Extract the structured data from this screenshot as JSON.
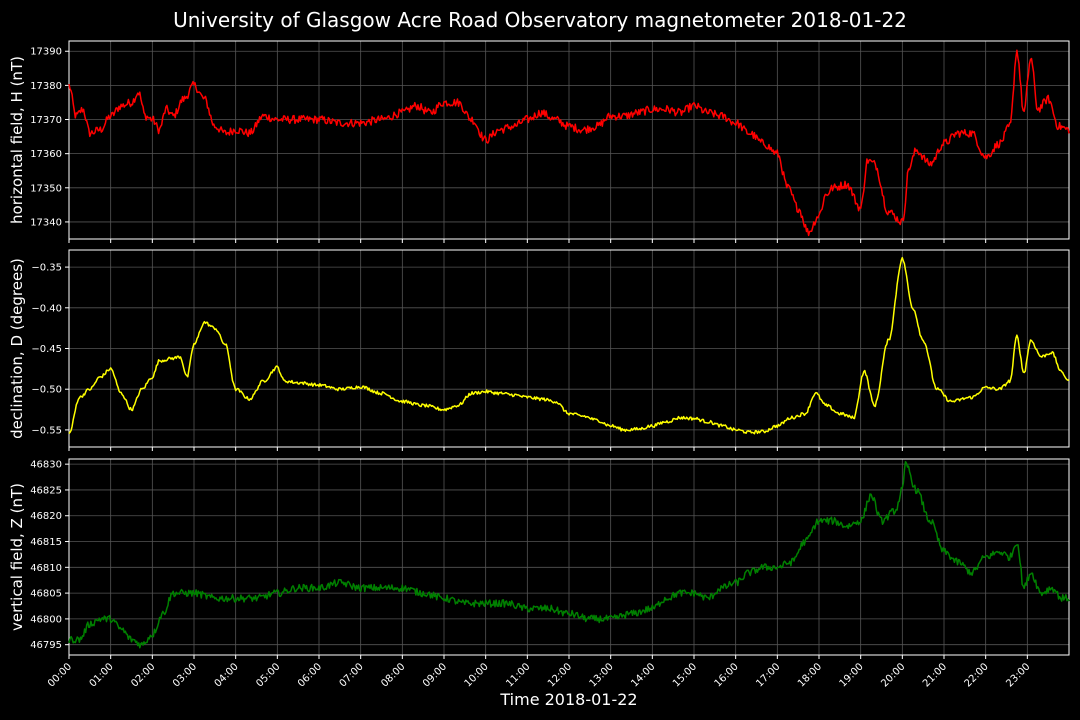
{
  "chart_data": {
    "type": "line",
    "title": "University of Glasgow Acre Road Observatory magnetometer 2018-01-22",
    "xlabel": "Time 2018-01-22",
    "x_ticks": [
      "00:00",
      "01:00",
      "02:00",
      "03:00",
      "04:00",
      "05:00",
      "06:00",
      "07:00",
      "08:00",
      "09:00",
      "10:00",
      "11:00",
      "12:00",
      "13:00",
      "14:00",
      "15:00",
      "16:00",
      "17:00",
      "18:00",
      "19:00",
      "20:00",
      "21:00",
      "22:00",
      "23:00"
    ],
    "xlim": [
      "00:00",
      "24:00"
    ],
    "grid": true,
    "panels": [
      {
        "ylabel": "horizontal field, H (nT)",
        "color": "#ff0000",
        "ylim": [
          17335,
          17393
        ],
        "y_ticks": [
          17340,
          17350,
          17360,
          17370,
          17380,
          17390
        ],
        "noise": 1.2,
        "points": [
          [
            "00:00",
            17380
          ],
          [
            "00:10",
            17371
          ],
          [
            "00:20",
            17373
          ],
          [
            "00:30",
            17366
          ],
          [
            "00:45",
            17367
          ],
          [
            "01:00",
            17371
          ],
          [
            "01:15",
            17374
          ],
          [
            "01:30",
            17375
          ],
          [
            "01:40",
            17378
          ],
          [
            "01:50",
            17371
          ],
          [
            "02:00",
            17370
          ],
          [
            "02:10",
            17367
          ],
          [
            "02:20",
            17373
          ],
          [
            "02:30",
            17371
          ],
          [
            "02:45",
            17376
          ],
          [
            "03:00",
            17380
          ],
          [
            "03:15",
            17376
          ],
          [
            "03:30",
            17368
          ],
          [
            "03:45",
            17366
          ],
          [
            "04:00",
            17367
          ],
          [
            "04:20",
            17366
          ],
          [
            "04:40",
            17371
          ],
          [
            "05:00",
            17370
          ],
          [
            "05:30",
            17370
          ],
          [
            "06:00",
            17370
          ],
          [
            "06:30",
            17369
          ],
          [
            "07:00",
            17369
          ],
          [
            "07:30",
            17370
          ],
          [
            "08:00",
            17372
          ],
          [
            "08:20",
            17374
          ],
          [
            "08:40",
            17372
          ],
          [
            "09:00",
            17375
          ],
          [
            "09:20",
            17375
          ],
          [
            "09:40",
            17370
          ],
          [
            "10:00",
            17364
          ],
          [
            "10:20",
            17367
          ],
          [
            "10:40",
            17368
          ],
          [
            "11:00",
            17370
          ],
          [
            "11:20",
            17372
          ],
          [
            "11:40",
            17370
          ],
          [
            "12:00",
            17368
          ],
          [
            "12:20",
            17367
          ],
          [
            "12:40",
            17368
          ],
          [
            "13:00",
            17371
          ],
          [
            "13:20",
            17371
          ],
          [
            "13:40",
            17372
          ],
          [
            "14:00",
            17373
          ],
          [
            "14:20",
            17373
          ],
          [
            "14:40",
            17372
          ],
          [
            "15:00",
            17374
          ],
          [
            "15:20",
            17372
          ],
          [
            "15:40",
            17371
          ],
          [
            "16:00",
            17369
          ],
          [
            "16:20",
            17366
          ],
          [
            "16:40",
            17363
          ],
          [
            "17:00",
            17360
          ],
          [
            "17:15",
            17350
          ],
          [
            "17:30",
            17344
          ],
          [
            "17:45",
            17337
          ],
          [
            "18:00",
            17342
          ],
          [
            "18:10",
            17348
          ],
          [
            "18:20",
            17350
          ],
          [
            "18:40",
            17351
          ],
          [
            "19:00",
            17344
          ],
          [
            "19:10",
            17358
          ],
          [
            "19:20",
            17357
          ],
          [
            "19:40",
            17343
          ],
          [
            "20:00",
            17340
          ],
          [
            "20:10",
            17356
          ],
          [
            "20:20",
            17361
          ],
          [
            "20:40",
            17357
          ],
          [
            "21:00",
            17363
          ],
          [
            "21:20",
            17366
          ],
          [
            "21:40",
            17366
          ],
          [
            "22:00",
            17359
          ],
          [
            "22:20",
            17363
          ],
          [
            "22:35",
            17368
          ],
          [
            "22:45",
            17390
          ],
          [
            "22:55",
            17372
          ],
          [
            "23:05",
            17388
          ],
          [
            "23:15",
            17373
          ],
          [
            "23:30",
            17376
          ],
          [
            "23:45",
            17368
          ],
          [
            "24:00",
            17367
          ]
        ]
      },
      {
        "ylabel": "declination, D (degrees)",
        "color": "#ffff00",
        "ylim": [
          -0.571,
          -0.329
        ],
        "y_ticks": [
          -0.55,
          -0.5,
          -0.45,
          -0.4,
          -0.35
        ],
        "y_tick_labels": [
          "−0.55",
          "−0.50",
          "−0.45",
          "−0.40",
          "−0.35"
        ],
        "noise": 0.002,
        "points": [
          [
            "00:00",
            -0.555
          ],
          [
            "00:15",
            -0.51
          ],
          [
            "00:30",
            -0.5
          ],
          [
            "00:45",
            -0.485
          ],
          [
            "01:00",
            -0.475
          ],
          [
            "01:15",
            -0.505
          ],
          [
            "01:30",
            -0.525
          ],
          [
            "01:45",
            -0.5
          ],
          [
            "02:00",
            -0.485
          ],
          [
            "02:10",
            -0.465
          ],
          [
            "02:30",
            -0.462
          ],
          [
            "02:40",
            -0.46
          ],
          [
            "02:50",
            -0.485
          ],
          [
            "03:00",
            -0.445
          ],
          [
            "03:15",
            -0.418
          ],
          [
            "03:30",
            -0.425
          ],
          [
            "03:45",
            -0.445
          ],
          [
            "04:00",
            -0.5
          ],
          [
            "04:20",
            -0.512
          ],
          [
            "04:40",
            -0.49
          ],
          [
            "05:00",
            -0.473
          ],
          [
            "05:10",
            -0.49
          ],
          [
            "05:30",
            -0.492
          ],
          [
            "06:00",
            -0.495
          ],
          [
            "06:30",
            -0.5
          ],
          [
            "07:00",
            -0.497
          ],
          [
            "07:30",
            -0.505
          ],
          [
            "08:00",
            -0.515
          ],
          [
            "08:30",
            -0.52
          ],
          [
            "09:00",
            -0.525
          ],
          [
            "09:20",
            -0.52
          ],
          [
            "09:40",
            -0.505
          ],
          [
            "10:00",
            -0.503
          ],
          [
            "10:20",
            -0.505
          ],
          [
            "10:40",
            -0.507
          ],
          [
            "11:00",
            -0.51
          ],
          [
            "11:20",
            -0.512
          ],
          [
            "11:40",
            -0.515
          ],
          [
            "12:00",
            -0.53
          ],
          [
            "12:20",
            -0.533
          ],
          [
            "12:40",
            -0.538
          ],
          [
            "13:00",
            -0.545
          ],
          [
            "13:20",
            -0.55
          ],
          [
            "13:40",
            -0.549
          ],
          [
            "14:00",
            -0.545
          ],
          [
            "14:20",
            -0.54
          ],
          [
            "14:40",
            -0.535
          ],
          [
            "15:00",
            -0.536
          ],
          [
            "15:20",
            -0.54
          ],
          [
            "15:40",
            -0.545
          ],
          [
            "16:00",
            -0.55
          ],
          [
            "16:20",
            -0.553
          ],
          [
            "16:40",
            -0.552
          ],
          [
            "17:00",
            -0.545
          ],
          [
            "17:20",
            -0.535
          ],
          [
            "17:40",
            -0.53
          ],
          [
            "17:55",
            -0.505
          ],
          [
            "18:10",
            -0.52
          ],
          [
            "18:30",
            -0.53
          ],
          [
            "18:50",
            -0.535
          ],
          [
            "19:05",
            -0.478
          ],
          [
            "19:20",
            -0.52
          ],
          [
            "19:40",
            -0.44
          ],
          [
            "20:00",
            -0.34
          ],
          [
            "20:15",
            -0.4
          ],
          [
            "20:30",
            -0.44
          ],
          [
            "20:50",
            -0.5
          ],
          [
            "21:10",
            -0.515
          ],
          [
            "21:40",
            -0.51
          ],
          [
            "22:00",
            -0.498
          ],
          [
            "22:20",
            -0.5
          ],
          [
            "22:35",
            -0.49
          ],
          [
            "22:45",
            -0.435
          ],
          [
            "22:55",
            -0.48
          ],
          [
            "23:05",
            -0.44
          ],
          [
            "23:20",
            -0.46
          ],
          [
            "23:35",
            -0.455
          ],
          [
            "23:50",
            -0.48
          ],
          [
            "24:00",
            -0.49
          ]
        ]
      },
      {
        "ylabel": "vertical field, Z (nT)",
        "color": "#008000",
        "ylim": [
          46793,
          46831
        ],
        "y_ticks": [
          46795,
          46800,
          46805,
          46810,
          46815,
          46820,
          46825,
          46830
        ],
        "noise": 0.7,
        "points": [
          [
            "00:00",
            46796
          ],
          [
            "00:15",
            46796
          ],
          [
            "00:30",
            46799
          ],
          [
            "00:45",
            46800
          ],
          [
            "01:00",
            46800
          ],
          [
            "01:15",
            46798
          ],
          [
            "01:30",
            46796
          ],
          [
            "01:45",
            46795
          ],
          [
            "02:00",
            46797
          ],
          [
            "02:15",
            46801
          ],
          [
            "02:30",
            46805
          ],
          [
            "02:45",
            46805
          ],
          [
            "03:00",
            46805
          ],
          [
            "03:30",
            46804
          ],
          [
            "04:00",
            46804
          ],
          [
            "04:30",
            46804
          ],
          [
            "05:00",
            46805
          ],
          [
            "05:30",
            46806
          ],
          [
            "06:00",
            46806
          ],
          [
            "06:30",
            46807
          ],
          [
            "07:00",
            46806
          ],
          [
            "07:30",
            46806
          ],
          [
            "08:00",
            46806
          ],
          [
            "08:30",
            46805
          ],
          [
            "09:00",
            46804
          ],
          [
            "09:30",
            46803
          ],
          [
            "10:00",
            46803
          ],
          [
            "10:30",
            46803
          ],
          [
            "11:00",
            46802
          ],
          [
            "11:30",
            46802
          ],
          [
            "12:00",
            46801
          ],
          [
            "12:30",
            46800
          ],
          [
            "13:00",
            46800
          ],
          [
            "13:30",
            46801
          ],
          [
            "14:00",
            46802
          ],
          [
            "14:20",
            46804
          ],
          [
            "14:40",
            46805
          ],
          [
            "15:00",
            46805
          ],
          [
            "15:20",
            46804
          ],
          [
            "15:40",
            46806
          ],
          [
            "16:00",
            46807
          ],
          [
            "16:20",
            46809
          ],
          [
            "16:40",
            46810
          ],
          [
            "17:00",
            46810
          ],
          [
            "17:20",
            46811
          ],
          [
            "17:40",
            46815
          ],
          [
            "18:00",
            46819
          ],
          [
            "18:20",
            46819
          ],
          [
            "18:40",
            46818
          ],
          [
            "19:00",
            46819
          ],
          [
            "19:15",
            46824
          ],
          [
            "19:30",
            46819
          ],
          [
            "19:50",
            46821
          ],
          [
            "20:00",
            46825
          ],
          [
            "20:05",
            46830
          ],
          [
            "20:20",
            46825
          ],
          [
            "20:40",
            46819
          ],
          [
            "21:00",
            46813
          ],
          [
            "21:20",
            46811
          ],
          [
            "21:40",
            46809
          ],
          [
            "22:00",
            46812
          ],
          [
            "22:20",
            46813
          ],
          [
            "22:35",
            46812
          ],
          [
            "22:45",
            46815
          ],
          [
            "22:55",
            46806
          ],
          [
            "23:05",
            46809
          ],
          [
            "23:20",
            46805
          ],
          [
            "23:35",
            46806
          ],
          [
            "23:50",
            46804
          ],
          [
            "24:00",
            46804
          ]
        ]
      }
    ]
  }
}
